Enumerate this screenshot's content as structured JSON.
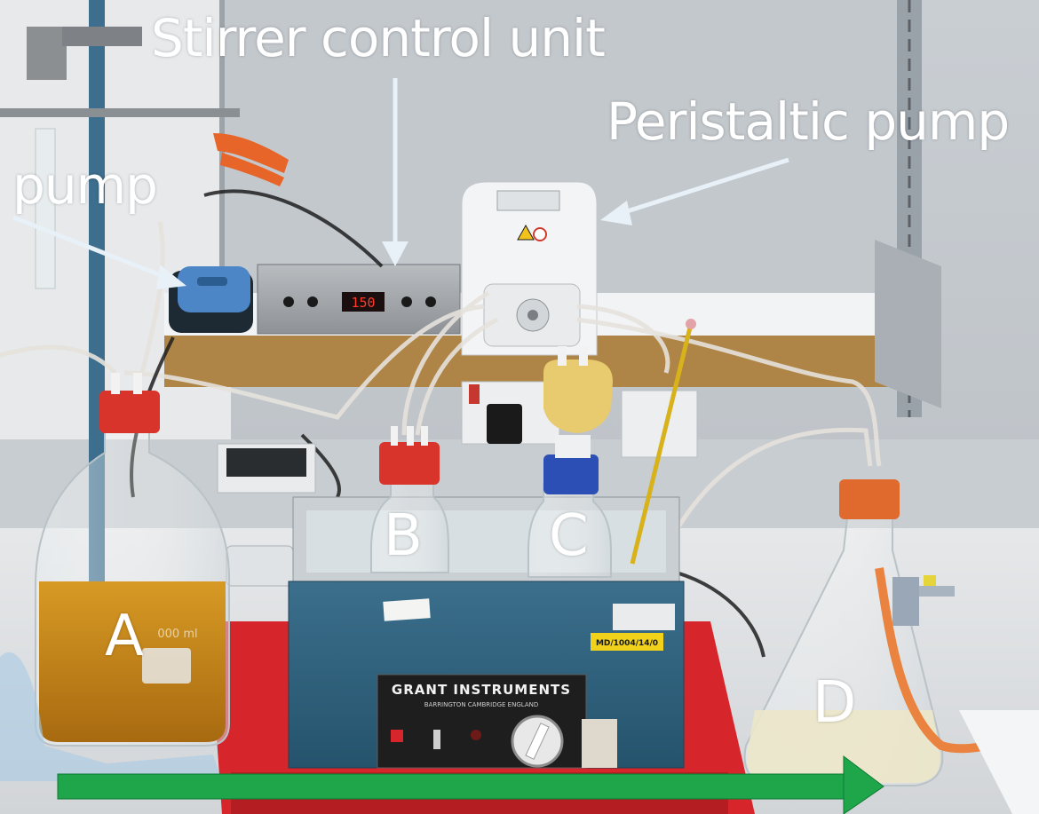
{
  "annotations": {
    "stirrer_control_unit": "Stirrer control unit",
    "peristaltic_pump": "Peristaltic  pump",
    "pump": "pump"
  },
  "vessels": {
    "a": "A",
    "b": "B",
    "c": "C",
    "d": "D"
  },
  "equipment_text": {
    "water_bath_brand": "GRANT INSTRUMENTS",
    "water_bath_location": "BARRINGTON  CAMBRIDGE  ENGLAND",
    "asset_tag": "MD/1004/14/0",
    "stirrer_display": "150",
    "bottle_a_volume": "000 ml"
  },
  "colors": {
    "flow_arrow": "#1fa64a",
    "label_text": "#ffffff",
    "water_bath_body": "#2f5f7a",
    "tray": "#d6262b",
    "cap_red": "#d9342b",
    "cap_blue": "#2c4fb6",
    "liquid_amber": "#c98a1a"
  }
}
